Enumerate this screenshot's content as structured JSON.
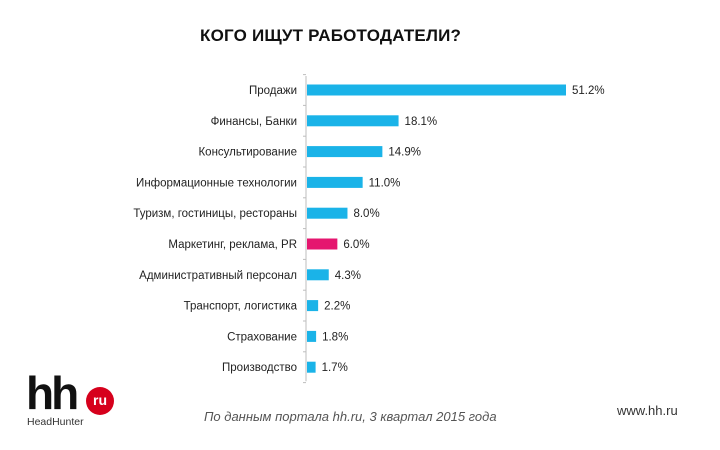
{
  "title": "КОГО ИЩУТ РАБОТОДАТЕЛИ?",
  "chart_data": {
    "type": "bar",
    "orientation": "horizontal",
    "title": "КОГО ИЩУТ РАБОТОДАТЕЛИ?",
    "categories": [
      "Продажи",
      "Финансы, Банки",
      "Консультирование",
      "Информационные технологии",
      "Туризм, гостиницы, рестораны",
      "Маркетинг, реклама, PR",
      "Административный персонал",
      "Транспорт, логистика",
      "Страхование",
      "Производство"
    ],
    "values": [
      51.2,
      18.1,
      14.9,
      11.0,
      8.0,
      6.0,
      4.3,
      2.2,
      1.8,
      1.7
    ],
    "value_labels": [
      "51.2%",
      "18.1%",
      "14.9%",
      "11.0%",
      "8.0%",
      "6.0%",
      "4.3%",
      "2.2%",
      "1.8%",
      "1.7%"
    ],
    "unit": "%",
    "xlim": [
      0,
      51.2
    ],
    "grid": false,
    "bar_color": "#1ab3e8",
    "highlight_color": "#e5166f",
    "highlight_index": 5
  },
  "logo": {
    "mark": "hh",
    "badge": "ru",
    "subtitle": "HeadHunter",
    "color": "#d6001c"
  },
  "footnote": "По данным портала hh.ru, 3 квартал 2015 года",
  "site": "www.hh.ru"
}
